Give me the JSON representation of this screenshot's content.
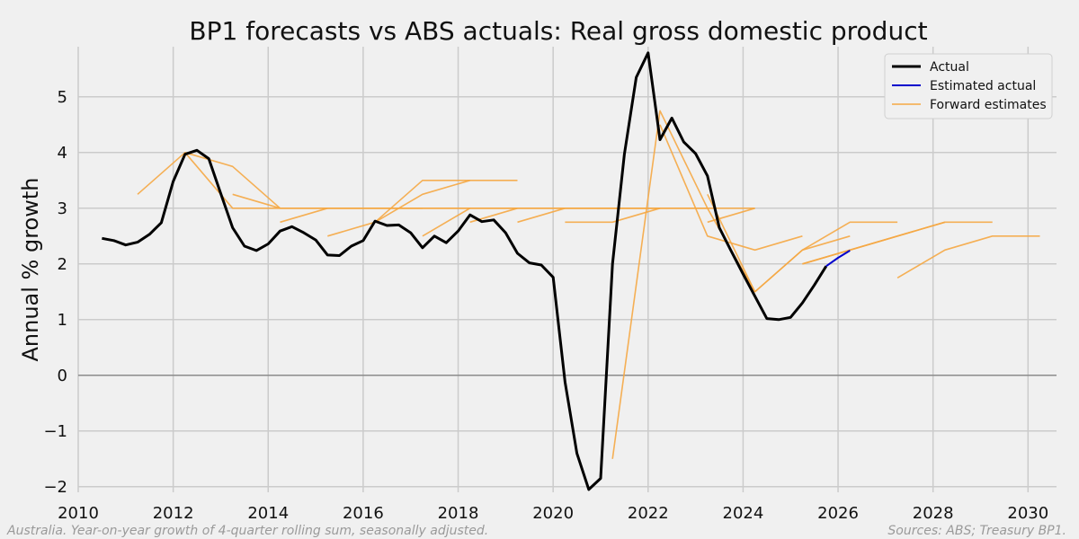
{
  "chart_data": {
    "type": "line",
    "title": "BP1 forecasts vs ABS actuals: Real gross domestic product",
    "ylabel": "Annual % growth",
    "xlabel": "",
    "xlim": [
      2010,
      2030.6
    ],
    "ylim": [
      -2.1,
      5.9
    ],
    "x_ticks": [
      2010,
      2012,
      2014,
      2016,
      2018,
      2020,
      2022,
      2024,
      2026,
      2028,
      2030
    ],
    "y_ticks": [
      -2,
      -1,
      0,
      1,
      2,
      3,
      4,
      5
    ],
    "y_tick_labels": [
      "−2",
      "−1",
      "0",
      "1",
      "2",
      "3",
      "4",
      "5"
    ],
    "grid": true,
    "zero_line": true,
    "legend": {
      "position": "top-right",
      "entries": [
        {
          "label": "Actual",
          "color": "#000000"
        },
        {
          "label": "Estimated actual",
          "color": "#0000cc"
        },
        {
          "label": "Forward estimates",
          "color": "#f5a742"
        }
      ]
    },
    "series": [
      {
        "name": "Actual",
        "color": "#000000",
        "points": [
          [
            2010.5,
            2.46
          ],
          [
            2010.75,
            2.42
          ],
          [
            2011.0,
            2.34
          ],
          [
            2011.25,
            2.39
          ],
          [
            2011.5,
            2.53
          ],
          [
            2011.75,
            2.74
          ],
          [
            2012.0,
            3.48
          ],
          [
            2012.25,
            3.97
          ],
          [
            2012.5,
            4.04
          ],
          [
            2012.75,
            3.89
          ],
          [
            2013.0,
            3.27
          ],
          [
            2013.25,
            2.65
          ],
          [
            2013.5,
            2.32
          ],
          [
            2013.75,
            2.24
          ],
          [
            2014.0,
            2.36
          ],
          [
            2014.25,
            2.59
          ],
          [
            2014.5,
            2.67
          ],
          [
            2014.75,
            2.56
          ],
          [
            2015.0,
            2.43
          ],
          [
            2015.25,
            2.16
          ],
          [
            2015.5,
            2.15
          ],
          [
            2015.75,
            2.32
          ],
          [
            2016.0,
            2.42
          ],
          [
            2016.25,
            2.77
          ],
          [
            2016.5,
            2.69
          ],
          [
            2016.75,
            2.7
          ],
          [
            2017.0,
            2.56
          ],
          [
            2017.25,
            2.29
          ],
          [
            2017.5,
            2.5
          ],
          [
            2017.75,
            2.38
          ],
          [
            2018.0,
            2.59
          ],
          [
            2018.25,
            2.88
          ],
          [
            2018.5,
            2.76
          ],
          [
            2018.75,
            2.79
          ],
          [
            2019.0,
            2.56
          ],
          [
            2019.25,
            2.19
          ],
          [
            2019.5,
            2.02
          ],
          [
            2019.75,
            1.98
          ],
          [
            2020.0,
            1.76
          ],
          [
            2020.25,
            -0.12
          ],
          [
            2020.5,
            -1.4
          ],
          [
            2020.75,
            -2.05
          ],
          [
            2021.0,
            -1.85
          ],
          [
            2021.25,
            2.0
          ],
          [
            2021.5,
            3.97
          ],
          [
            2021.75,
            5.35
          ],
          [
            2022.0,
            5.79
          ],
          [
            2022.25,
            4.23
          ],
          [
            2022.5,
            4.62
          ],
          [
            2022.75,
            4.19
          ],
          [
            2023.0,
            3.98
          ],
          [
            2023.25,
            3.58
          ],
          [
            2023.5,
            2.65
          ],
          [
            2023.75,
            2.23
          ],
          [
            2024.0,
            1.82
          ],
          [
            2024.25,
            1.42
          ],
          [
            2024.5,
            1.02
          ],
          [
            2024.75,
            1.0
          ],
          [
            2025.0,
            1.04
          ],
          [
            2025.25,
            1.3
          ],
          [
            2025.5,
            1.62
          ],
          [
            2025.75,
            1.96
          ]
        ]
      },
      {
        "name": "Estimated actual",
        "color": "#0000cc",
        "points": [
          [
            2025.75,
            1.96
          ],
          [
            2026.0,
            2.11
          ],
          [
            2026.25,
            2.24
          ]
        ]
      },
      {
        "name": "Forward estimates",
        "color": "#f5a742",
        "lines": [
          [
            [
              2011.25,
              3.25
            ],
            [
              2012.25,
              4.0
            ],
            [
              2013.25,
              3.75
            ],
            [
              2014.25,
              3.0
            ]
          ],
          [
            [
              2012.25,
              4.0
            ],
            [
              2013.25,
              3.0
            ],
            [
              2017.25,
              3.0
            ]
          ],
          [
            [
              2013.25,
              3.25
            ],
            [
              2014.25,
              3.0
            ],
            [
              2018.25,
              3.0
            ]
          ],
          [
            [
              2014.25,
              2.75
            ],
            [
              2015.25,
              3.0
            ],
            [
              2019.25,
              3.0
            ]
          ],
          [
            [
              2015.25,
              2.5
            ],
            [
              2016.25,
              2.75
            ],
            [
              2017.25,
              3.5
            ],
            [
              2019.25,
              3.5
            ]
          ],
          [
            [
              2016.25,
              2.75
            ],
            [
              2017.25,
              3.25
            ],
            [
              2018.25,
              3.5
            ]
          ],
          [
            [
              2017.25,
              2.5
            ],
            [
              2018.25,
              3.0
            ],
            [
              2023.25,
              3.0
            ]
          ],
          [
            [
              2018.25,
              2.75
            ],
            [
              2019.25,
              3.0
            ],
            [
              2024.25,
              3.0
            ]
          ],
          [
            [
              2019.25,
              2.75
            ],
            [
              2020.25,
              3.0
            ],
            [
              2022.25,
              3.0
            ]
          ],
          [
            [
              2020.25,
              2.75
            ],
            [
              2021.25,
              2.75
            ],
            [
              2022.25,
              3.0
            ]
          ],
          [
            [
              2021.25,
              -1.5
            ],
            [
              2022.25,
              4.75
            ],
            [
              2023.25,
              3.0
            ],
            [
              2024.25,
              1.5
            ]
          ],
          [
            [
              2022.25,
              4.5
            ],
            [
              2023.25,
              2.5
            ],
            [
              2024.25,
              2.25
            ],
            [
              2025.25,
              2.5
            ]
          ],
          [
            [
              2023.25,
              3.25
            ],
            [
              2024.25,
              1.5
            ],
            [
              2025.25,
              2.25
            ],
            [
              2026.25,
              2.75
            ],
            [
              2027.25,
              2.75
            ]
          ],
          [
            [
              2023.25,
              2.75
            ],
            [
              2024.25,
              3.0
            ]
          ],
          [
            [
              2025.25,
              2.0
            ],
            [
              2026.25,
              2.25
            ],
            [
              2028.25,
              2.75
            ],
            [
              2029.25,
              2.75
            ]
          ],
          [
            [
              2024.25,
              1.5
            ],
            [
              2025.25,
              2.25
            ],
            [
              2026.25,
              2.5
            ]
          ],
          [
            [
              2025.25,
              2.0
            ],
            [
              2026.25,
              2.25
            ],
            [
              2028.25,
              2.75
            ]
          ],
          [
            [
              2027.25,
              1.75
            ],
            [
              2028.25,
              2.25
            ],
            [
              2029.25,
              2.5
            ],
            [
              2030.25,
              2.5
            ]
          ]
        ]
      }
    ]
  },
  "footnotes": {
    "left": "Australia. Year-on-year growth of 4-quarter rolling sum, seasonally adjusted.",
    "right": "Sources: ABS; Treasury BP1."
  }
}
